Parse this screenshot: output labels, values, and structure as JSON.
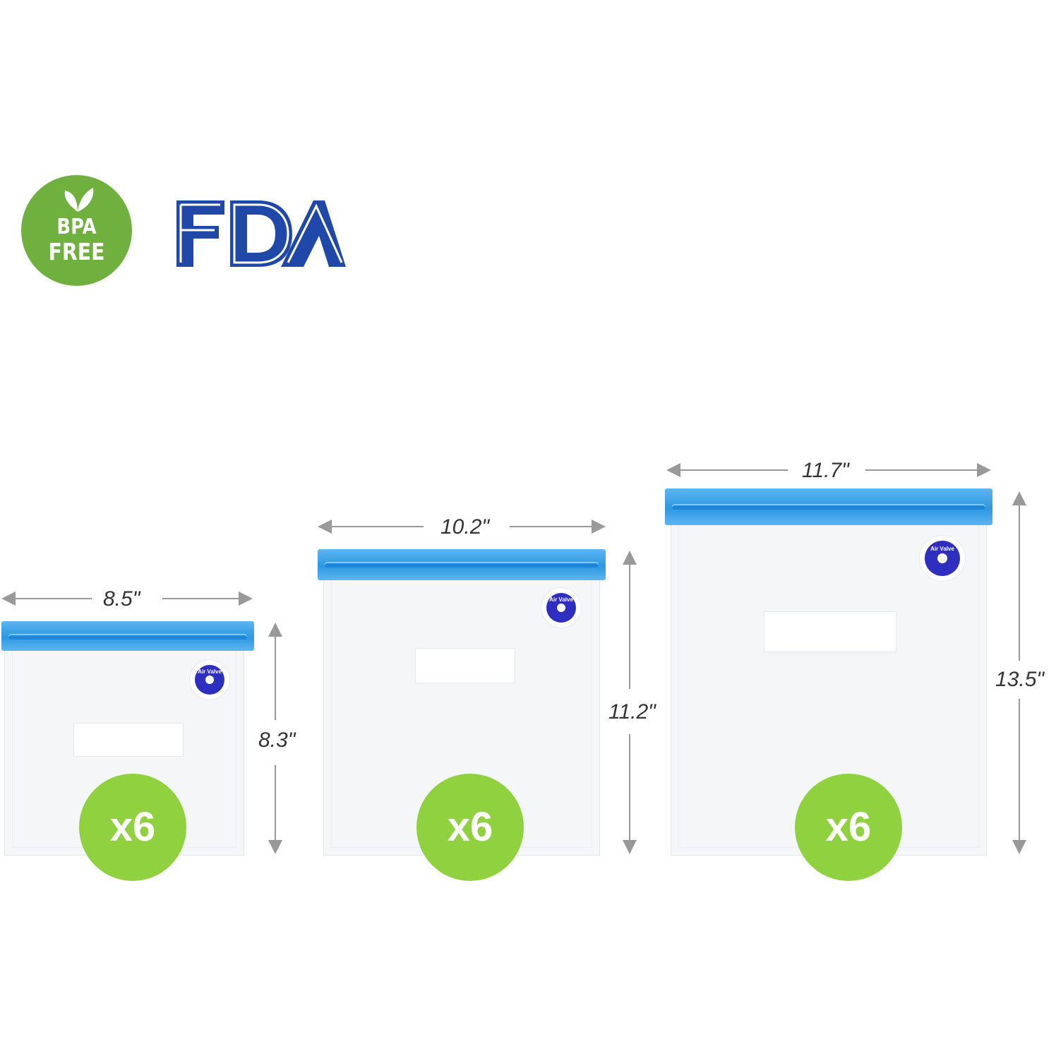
{
  "badges": {
    "bpa_line1": "BPA",
    "bpa_line2": "FREE",
    "fda": "FDA"
  },
  "colors": {
    "bpa_green": "#6fb03f",
    "fda_blue": "#1f48a8",
    "qty_green": "#8fd13f",
    "zip_blue": "#2f97e2",
    "valve_blue": "#2f2fbf",
    "arrow_gray": "#999999"
  },
  "bags": [
    {
      "width": "8.5\"",
      "height": "8.3\"",
      "quantity": "x6",
      "valve_label": "Air Valve"
    },
    {
      "width": "10.2\"",
      "height": "11.2\"",
      "quantity": "x6",
      "valve_label": "Air Valve"
    },
    {
      "width": "11.7\"",
      "height": "13.5\"",
      "quantity": "x6",
      "valve_label": "Air Valve"
    }
  ]
}
